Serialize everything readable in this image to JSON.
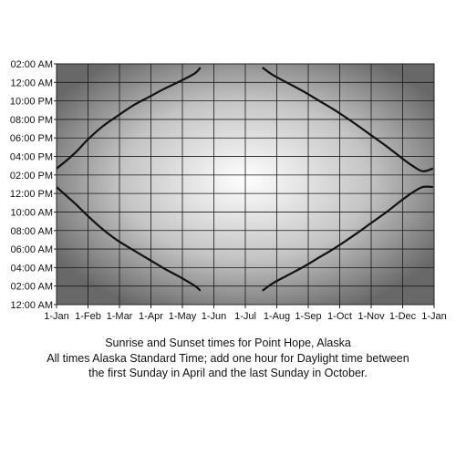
{
  "chart_data": {
    "type": "line",
    "x_categories": [
      "1-Jan",
      "1-Feb",
      "1-Mar",
      "1-Apr",
      "1-May",
      "1-Jun",
      "1-Jul",
      "1-Aug",
      "1-Sep",
      "1-Oct",
      "1-Nov",
      "1-Dec",
      "1-Jan"
    ],
    "y_tick_labels": [
      "12:00 AM",
      "02:00 AM",
      "04:00 AM",
      "06:00 AM",
      "08:00 AM",
      "10:00 AM",
      "12:00 PM",
      "02:00 PM",
      "04:00 PM",
      "06:00 PM",
      "08:00 PM",
      "10:00 PM",
      "12:00 AM",
      "02:00 AM"
    ],
    "y_range_hours": [
      0,
      26
    ],
    "grid": true,
    "series": [
      {
        "segment": "first-half-upper",
        "x_day_of_year": [
          1,
          10,
          20,
          31,
          45,
          59,
          75,
          90,
          105,
          120,
          135,
          140
        ],
        "y_hours": [
          14.7,
          15.5,
          16.5,
          17.8,
          19.2,
          20.3,
          21.5,
          22.4,
          23.3,
          24.1,
          25.0,
          25.6
        ]
      },
      {
        "segment": "first-half-lower",
        "x_day_of_year": [
          1,
          10,
          20,
          31,
          45,
          59,
          75,
          90,
          105,
          120,
          135,
          140
        ],
        "y_hours": [
          12.7,
          11.8,
          10.8,
          9.6,
          8.2,
          7.0,
          5.9,
          4.9,
          3.9,
          3.0,
          2.0,
          1.5
        ]
      },
      {
        "segment": "second-half-upper",
        "x_day_of_year": [
          200,
          210,
          225,
          240,
          255,
          270,
          290,
          305,
          320,
          335,
          345,
          355,
          365
        ],
        "y_hours": [
          25.6,
          24.8,
          23.9,
          23.0,
          22.0,
          21.0,
          19.5,
          18.3,
          17.1,
          15.8,
          15.0,
          14.4,
          14.7
        ]
      },
      {
        "segment": "second-half-lower",
        "x_day_of_year": [
          200,
          210,
          225,
          240,
          255,
          270,
          290,
          305,
          320,
          335,
          345,
          355,
          365
        ],
        "y_hours": [
          1.5,
          2.3,
          3.2,
          4.1,
          5.1,
          6.1,
          7.6,
          8.8,
          10.0,
          11.3,
          12.1,
          12.7,
          12.7
        ]
      }
    ]
  },
  "caption": {
    "line1": "Sunrise and Sunset times for Point Hope, Alaska",
    "line2": "All times Alaska Standard Time; add one hour for Daylight time between",
    "line3": "the first Sunday in April and the last Sunday in October."
  }
}
